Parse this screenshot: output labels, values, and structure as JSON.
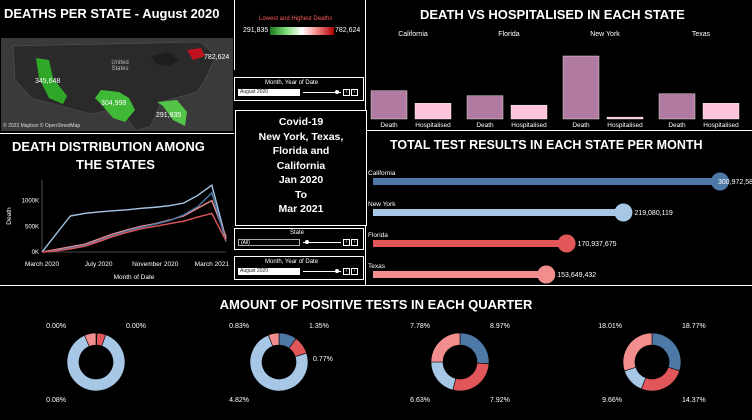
{
  "map_panel": {
    "title": "DEATHS PER STATE - August 2020",
    "legend_title": "Lowest and Highest Deaths",
    "legend_min": "291,835",
    "legend_max": "782,624",
    "country_label": "United States",
    "attribution": "© 2023 Mapbox © OpenStreetMap",
    "values": [
      {
        "name": "california",
        "label": "345,648"
      },
      {
        "name": "new-york",
        "label": "782,624"
      },
      {
        "name": "texas",
        "label": "304,998"
      },
      {
        "name": "florida",
        "label": "291,835"
      }
    ],
    "colors": {
      "california": "#2fa82a",
      "texas": "#3fb936",
      "florida": "#54c449",
      "new_york": "#c1121f"
    }
  },
  "filters": {
    "top": {
      "label": "Month, Year of Date",
      "value": "August 2020"
    },
    "state": {
      "label": "State",
      "value": "(All)"
    },
    "bottom": {
      "label": "Month, Year of Date",
      "value": "August 2020"
    }
  },
  "center_title": {
    "lines": [
      "Covid-19",
      "New York, Texas,",
      "Florida and",
      "California",
      "Jan 2020",
      "To",
      "Mar 2021"
    ]
  },
  "death_hosp_panel": {
    "title": "DEATH VS HOSPITALISED IN EACH STATE"
  },
  "distribution_panel": {
    "title_line1": "DEATH DISTRIBUTION AMONG",
    "title_line2": "THE STATES"
  },
  "test_results_panel": {
    "title": "TOTAL TEST RESULTS IN EACH STATE PER MONTH"
  },
  "positive_panel": {
    "title": "AMOUNT OF POSITIVE TESTS IN EACH QUARTER"
  },
  "chart_data": [
    {
      "id": "death-vs-hospitalised",
      "type": "bar",
      "title": "DEATH VS HOSPITALISED IN EACH STATE",
      "groups": [
        "California",
        "Florida",
        "New York",
        "Texas"
      ],
      "categories": [
        "Death",
        "Hospitalised"
      ],
      "values": [
        [
          0.45,
          0.25
        ],
        [
          0.37,
          0.22
        ],
        [
          1.0,
          0.03
        ],
        [
          0.4,
          0.25
        ]
      ],
      "colors": {
        "Death": "#b07aa1",
        "Hospitalised": "#ffc4dd"
      }
    },
    {
      "id": "death-distribution",
      "type": "line",
      "xlabel": "Month of Date",
      "ylabel": "Death",
      "x_ticks": [
        "March 2020",
        "July 2020",
        "November 2020",
        "March 2021"
      ],
      "y_ticks": [
        "0K",
        "500K",
        "1000K"
      ],
      "ylim": [
        0,
        1400
      ],
      "x": [
        0,
        1,
        2,
        3,
        4,
        5,
        6,
        7,
        8,
        9,
        10,
        11,
        12,
        13
      ],
      "series": [
        {
          "color": "#a7c7e7",
          "values": [
            0,
            350,
            700,
            750,
            780,
            800,
            820,
            850,
            870,
            900,
            950,
            1100,
            1300,
            250
          ]
        },
        {
          "color": "#f28e8e",
          "values": [
            0,
            50,
            100,
            150,
            250,
            350,
            430,
            500,
            550,
            620,
            700,
            850,
            1000,
            300
          ]
        },
        {
          "color": "#4e79a7",
          "values": [
            0,
            30,
            80,
            130,
            220,
            320,
            410,
            480,
            540,
            610,
            720,
            880,
            1150,
            200
          ]
        },
        {
          "color": "#e15759",
          "values": [
            0,
            20,
            60,
            110,
            200,
            300,
            380,
            450,
            500,
            550,
            600,
            680,
            750,
            220
          ]
        }
      ]
    },
    {
      "id": "total-test-results",
      "type": "bar",
      "title": "TOTAL TEST RESULTS IN EACH STATE PER MONTH",
      "categories": [
        "California",
        "New York",
        "Florida",
        "Texas"
      ],
      "values": [
        300972587,
        219080119,
        170937675,
        153649432
      ],
      "value_labels": [
        "300,972,587",
        "219,080,119",
        "170,937,675",
        "153,649,432"
      ],
      "colors": [
        "#4e79a7",
        "#a7c7e7",
        "#e15759",
        "#f28e8e"
      ],
      "xlim": [
        0,
        300972587
      ]
    },
    {
      "id": "positive-tests-quarter",
      "type": "pie",
      "title": "AMOUNT OF POSITIVE TESTS IN EACH QUARTER",
      "colors": [
        "#4e79a7",
        "#e15759",
        "#a7c7e7",
        "#f28e8e"
      ],
      "donuts": [
        {
          "slices": [
            0.5,
            5,
            88,
            6.5
          ],
          "labels": [
            {
              "text": "0.00%",
              "side": "left-top"
            },
            {
              "text": "0.00%",
              "side": "right-top"
            },
            {
              "text": "0.08%",
              "side": "left-bottom"
            }
          ]
        },
        {
          "slices": [
            10,
            10,
            74,
            6
          ],
          "labels": [
            {
              "text": "0.83%",
              "side": "left-top"
            },
            {
              "text": "1.35%",
              "side": "right-top"
            },
            {
              "text": "0.77%",
              "side": "right-mid"
            },
            {
              "text": "4.82%",
              "side": "left-bottom"
            }
          ]
        },
        {
          "slices": [
            26,
            28,
            21,
            25
          ],
          "labels": [
            {
              "text": "7.78%",
              "side": "left-top"
            },
            {
              "text": "8.97%",
              "side": "right-top"
            },
            {
              "text": "6.63%",
              "side": "left-bottom"
            },
            {
              "text": "7.92%",
              "side": "right-bottom"
            }
          ]
        },
        {
          "slices": [
            30,
            26,
            14,
            30
          ],
          "labels": [
            {
              "text": "18.01%",
              "side": "left-top"
            },
            {
              "text": "18.77%",
              "side": "right-top"
            },
            {
              "text": "9.66%",
              "side": "left-bottom"
            },
            {
              "text": "14.37%",
              "side": "right-bottom"
            }
          ]
        }
      ]
    }
  ]
}
